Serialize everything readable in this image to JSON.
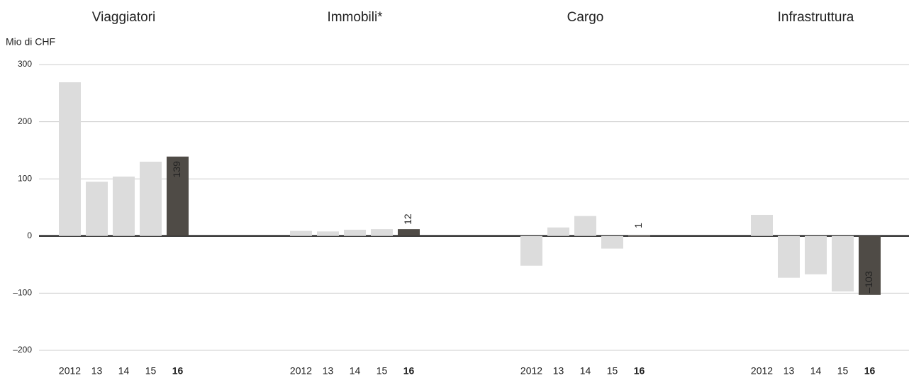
{
  "chart_data": {
    "type": "bar",
    "y_label": "Mio di CHF",
    "ylim": [
      -200,
      300
    ],
    "yticks": [
      {
        "value": -200,
        "label": "–200"
      },
      {
        "value": -100,
        "label": "–100"
      },
      0,
      100,
      200,
      300
    ],
    "grid": true,
    "color": "#dcdcdc",
    "highlight_color": "#4f4b46",
    "panels": [
      {
        "title": "Viaggiatori",
        "categories": [
          "2012",
          "13",
          "14",
          "15",
          "16"
        ],
        "values": [
          269,
          95,
          104,
          130,
          139
        ],
        "value_labels": [
          null,
          null,
          null,
          null,
          "139"
        ]
      },
      {
        "title": "Immobili*",
        "categories": [
          "2012",
          "13",
          "14",
          "15",
          "16"
        ],
        "values": [
          9,
          8,
          11,
          12,
          12
        ],
        "value_labels": [
          null,
          null,
          null,
          null,
          "12"
        ]
      },
      {
        "title": "Cargo",
        "categories": [
          "2012",
          "13",
          "14",
          "15",
          "16"
        ],
        "values": [
          -52,
          15,
          35,
          -22,
          1
        ],
        "value_labels": [
          null,
          null,
          null,
          null,
          "1"
        ]
      },
      {
        "title": "Infrastruttura",
        "categories": [
          "2012",
          "13",
          "14",
          "15",
          "16"
        ],
        "values": [
          37,
          -73,
          -67,
          -97,
          -103
        ],
        "value_labels": [
          null,
          null,
          null,
          null,
          "–103"
        ]
      }
    ]
  }
}
